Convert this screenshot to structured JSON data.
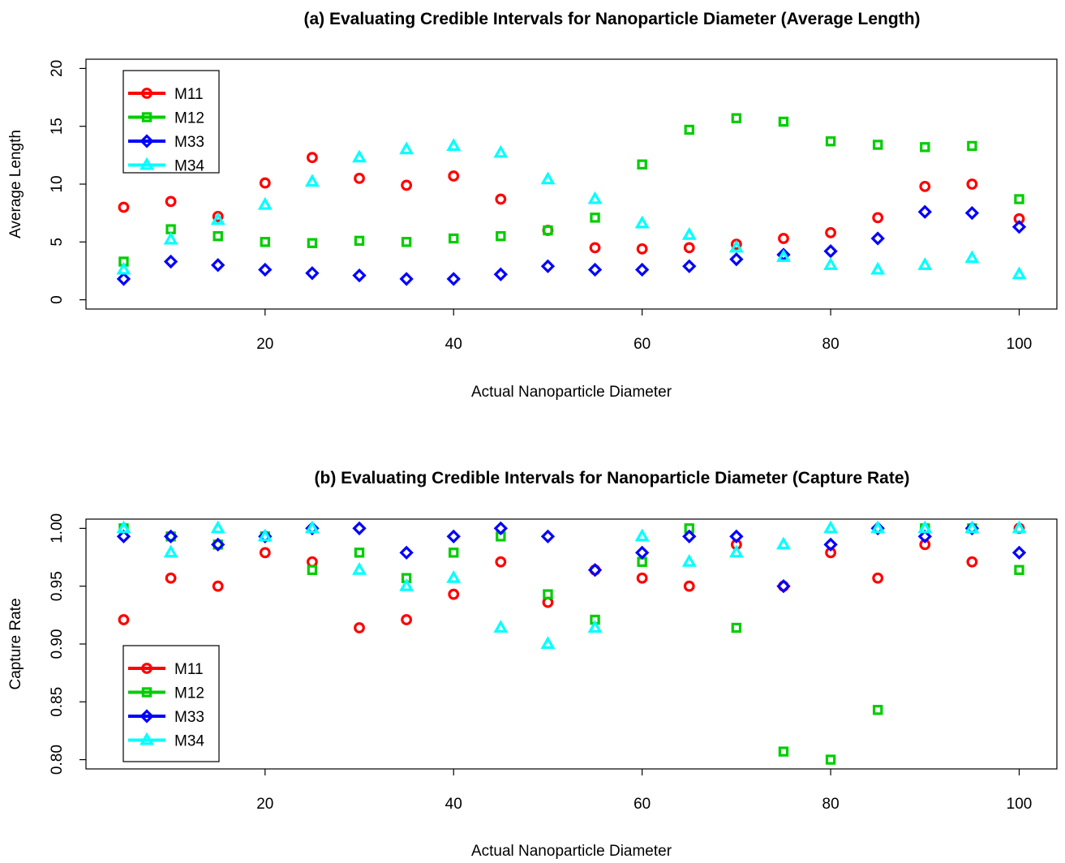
{
  "chart_data": [
    {
      "type": "scatter",
      "title": "(a) Evaluating Credible Intervals for Nanoparticle Diameter (Average Length)",
      "xlabel": "Actual Nanoparticle Diameter",
      "ylabel": "Average Length",
      "xlim": [
        1,
        104
      ],
      "ylim": [
        -0.8,
        20.8
      ],
      "x_ticks": [
        20,
        40,
        60,
        80,
        100
      ],
      "y_ticks": [
        0,
        5,
        10,
        15,
        20
      ],
      "y_tick_labels": [
        "0",
        "5",
        "10",
        "15",
        "20"
      ],
      "legend_position": "top-left",
      "x": [
        5,
        10,
        15,
        20,
        25,
        30,
        35,
        40,
        45,
        50,
        55,
        60,
        65,
        70,
        75,
        80,
        85,
        90,
        95,
        100
      ],
      "series": [
        {
          "name": "M11",
          "color": "#ff0000",
          "marker": "circle",
          "values": [
            8.0,
            8.5,
            7.2,
            10.1,
            12.3,
            10.5,
            9.9,
            10.7,
            8.7,
            6.0,
            4.5,
            4.4,
            4.5,
            4.8,
            5.3,
            5.8,
            7.1,
            9.8,
            10.0,
            7.0
          ]
        },
        {
          "name": "M12",
          "color": "#00cd00",
          "marker": "square",
          "values": [
            3.3,
            6.1,
            5.5,
            5.0,
            4.9,
            5.1,
            5.0,
            5.3,
            5.5,
            6.0,
            7.1,
            11.7,
            14.7,
            15.7,
            15.4,
            13.7,
            13.4,
            13.2,
            13.3,
            8.7
          ]
        },
        {
          "name": "M33",
          "color": "#0000ff",
          "marker": "diamond",
          "values": [
            1.8,
            3.3,
            3.0,
            2.6,
            2.3,
            2.1,
            1.8,
            1.8,
            2.2,
            2.9,
            2.6,
            2.6,
            2.9,
            3.5,
            3.9,
            4.2,
            5.3,
            7.6,
            7.5,
            6.3
          ]
        },
        {
          "name": "M34",
          "color": "#00ffff",
          "marker": "triangle",
          "values": [
            2.6,
            5.2,
            6.9,
            8.2,
            10.2,
            12.3,
            13.0,
            13.3,
            12.7,
            10.4,
            8.7,
            6.6,
            5.6,
            4.5,
            3.7,
            3.0,
            2.6,
            3.0,
            3.6,
            2.2
          ]
        }
      ]
    },
    {
      "type": "scatter",
      "title": "(b) Evaluating Credible Intervals for Nanoparticle Diameter (Capture Rate)",
      "xlabel": "Actual Nanoparticle Diameter",
      "ylabel": "Capture Rate",
      "xlim": [
        1,
        104
      ],
      "ylim": [
        0.792,
        1.008
      ],
      "x_ticks": [
        20,
        40,
        60,
        80,
        100
      ],
      "y_ticks": [
        0.8,
        0.85,
        0.9,
        0.95,
        1.0
      ],
      "y_tick_labels": [
        "0.80",
        "0.85",
        "0.90",
        "0.95",
        "1.00"
      ],
      "legend_position": "bottom-left",
      "x": [
        5,
        10,
        15,
        20,
        25,
        30,
        35,
        40,
        45,
        50,
        55,
        60,
        65,
        70,
        75,
        80,
        85,
        90,
        95,
        100
      ],
      "series": [
        {
          "name": "M11",
          "color": "#ff0000",
          "marker": "circle",
          "values": [
            0.921,
            0.957,
            0.95,
            0.979,
            0.971,
            0.914,
            0.921,
            0.943,
            0.971,
            0.936,
            0.964,
            0.957,
            0.95,
            0.986,
            0.95,
            0.979,
            0.957,
            0.986,
            0.971,
            1.0
          ]
        },
        {
          "name": "M12",
          "color": "#00cd00",
          "marker": "square",
          "values": [
            1.0,
            0.993,
            0.986,
            0.993,
            0.964,
            0.979,
            0.957,
            0.979,
            0.993,
            0.943,
            0.921,
            0.971,
            1.0,
            0.914,
            0.807,
            0.8,
            0.843,
            1.0,
            1.0,
            0.964
          ]
        },
        {
          "name": "M33",
          "color": "#0000ff",
          "marker": "diamond",
          "values": [
            0.993,
            0.993,
            0.986,
            0.993,
            1.0,
            1.0,
            0.979,
            0.993,
            1.0,
            0.993,
            0.964,
            0.979,
            0.993,
            0.993,
            0.95,
            0.986,
            1.0,
            0.993,
            1.0,
            0.979
          ]
        },
        {
          "name": "M34",
          "color": "#00ffff",
          "marker": "triangle",
          "values": [
            1.0,
            0.979,
            1.0,
            0.993,
            1.0,
            0.964,
            0.95,
            0.957,
            0.914,
            0.9,
            0.914,
            0.993,
            0.971,
            0.979,
            0.986,
            1.0,
            1.0,
            1.0,
            1.0,
            1.0
          ]
        }
      ]
    }
  ]
}
